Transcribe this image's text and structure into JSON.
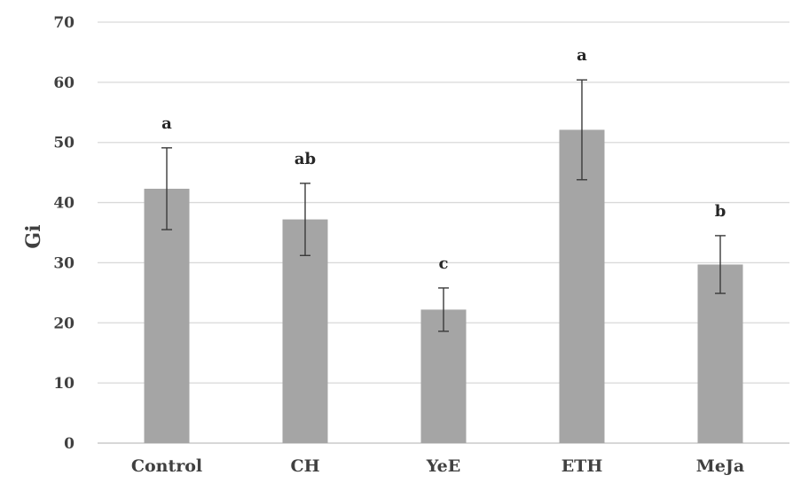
{
  "chart_data": {
    "type": "bar",
    "ylabel": "Gi",
    "xlabel": "",
    "title": "",
    "ylim": [
      0,
      70
    ],
    "yticks": [
      0,
      10,
      20,
      30,
      40,
      50,
      60,
      70
    ],
    "grid": true,
    "legend": "none",
    "bar_color": "#a5a5a5",
    "categories": [
      "Control",
      "CH",
      "YeE",
      "ETH",
      "MeJa"
    ],
    "values": [
      42.3,
      37.2,
      22.2,
      52.1,
      29.7
    ],
    "error": [
      6.8,
      6.0,
      3.6,
      8.3,
      4.8
    ],
    "significance": [
      "a",
      "ab",
      "c",
      "a",
      "b"
    ]
  }
}
